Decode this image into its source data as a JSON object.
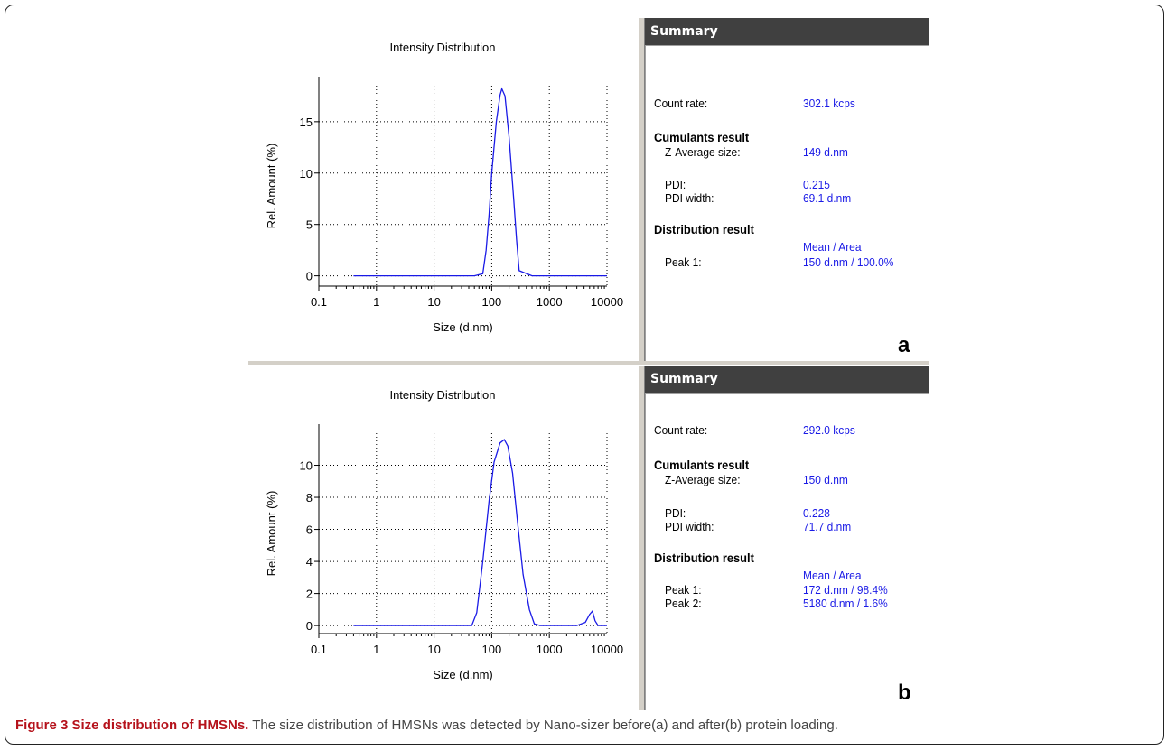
{
  "panels": [
    {
      "id": "a",
      "letter": "a",
      "chart_data": {
        "type": "line",
        "title": "Intensity Distribution",
        "xlabel": "Size (d.nm)",
        "ylabel": "Rel. Amount (%)",
        "xscale": "log",
        "xlim": [
          0.1,
          10000
        ],
        "ylim": [
          -1,
          18.5
        ],
        "x_ticks": [
          "0.1",
          "1",
          "10",
          "100",
          "1000",
          "10000"
        ],
        "y_ticks": [
          "0",
          "5",
          "10",
          "15"
        ],
        "grid": "dotted",
        "series": [
          {
            "color": "#1a1ae6",
            "x": [
              0.4,
              1,
              10,
              50,
              70,
              80,
              90,
              100,
              120,
              140,
              150,
              170,
              200,
              240,
              270,
              300,
              500,
              1000,
              5000,
              10000
            ],
            "y": [
              0,
              0,
              0,
              0,
              0.2,
              2.5,
              6,
              10,
              15,
              17.6,
              18.2,
              17.5,
              13.5,
              7.5,
              3.5,
              0.5,
              0,
              0,
              0,
              0
            ]
          }
        ]
      },
      "summary": {
        "header": "Summary",
        "count_rate_label": "Count rate:",
        "count_rate_value": "302.1 kcps",
        "cumulants_heading": "Cumulants result",
        "z_avg_label": "Z-Average size:",
        "z_avg_value": "149 d.nm",
        "pdi_label": "PDI:",
        "pdi_value": "0.215",
        "pdi_width_label": "PDI width:",
        "pdi_width_value": "69.1 d.nm",
        "distribution_heading": "Distribution result",
        "mean_area_label": "Mean / Area",
        "peaks": [
          {
            "label": "Peak 1:",
            "value": "150 d.nm / 100.0%"
          }
        ]
      }
    },
    {
      "id": "b",
      "letter": "b",
      "chart_data": {
        "type": "line",
        "title": "Intensity Distribution",
        "xlabel": "Size (d.nm)",
        "ylabel": "Rel. Amount (%)",
        "xscale": "log",
        "xlim": [
          0.1,
          10000
        ],
        "ylim": [
          -0.5,
          12
        ],
        "x_ticks": [
          "0.1",
          "1",
          "10",
          "100",
          "1000",
          "10000"
        ],
        "y_ticks": [
          "0",
          "2",
          "4",
          "6",
          "8",
          "10"
        ],
        "grid": "dotted",
        "series": [
          {
            "color": "#1a1ae6",
            "x": [
              0.4,
              1,
              10,
              30,
              45,
              55,
              70,
              90,
              110,
              140,
              165,
              190,
              230,
              280,
              350,
              450,
              550,
              700,
              1000,
              3000,
              4200,
              5000,
              5600,
              6200,
              7000,
              10000
            ],
            "y": [
              0,
              0,
              0,
              0,
              0,
              0.8,
              4,
              7.8,
              10.2,
              11.4,
              11.6,
              11.2,
              9.5,
              6.5,
              3.2,
              1,
              0.1,
              0,
              0,
              0,
              0.2,
              0.7,
              0.9,
              0.3,
              0,
              0
            ]
          }
        ]
      },
      "summary": {
        "header": "Summary",
        "count_rate_label": "Count rate:",
        "count_rate_value": "292.0 kcps",
        "cumulants_heading": "Cumulants result",
        "z_avg_label": "Z-Average size:",
        "z_avg_value": "150 d.nm",
        "pdi_label": "PDI:",
        "pdi_value": "0.228",
        "pdi_width_label": "PDI width:",
        "pdi_width_value": "71.7 d.nm",
        "distribution_heading": "Distribution result",
        "mean_area_label": "Mean / Area",
        "peaks": [
          {
            "label": "Peak 1:",
            "value": "172 d.nm / 98.4%"
          },
          {
            "label": "Peak 2:",
            "value": "5180 d.nm / 1.6%"
          }
        ]
      }
    }
  ],
  "caption": {
    "title": "Figure 3 Size distribution of HMSNs.",
    "text": " The size distribution of HMSNs was detected by Nano-sizer before(a) and after(b) protein loading."
  }
}
